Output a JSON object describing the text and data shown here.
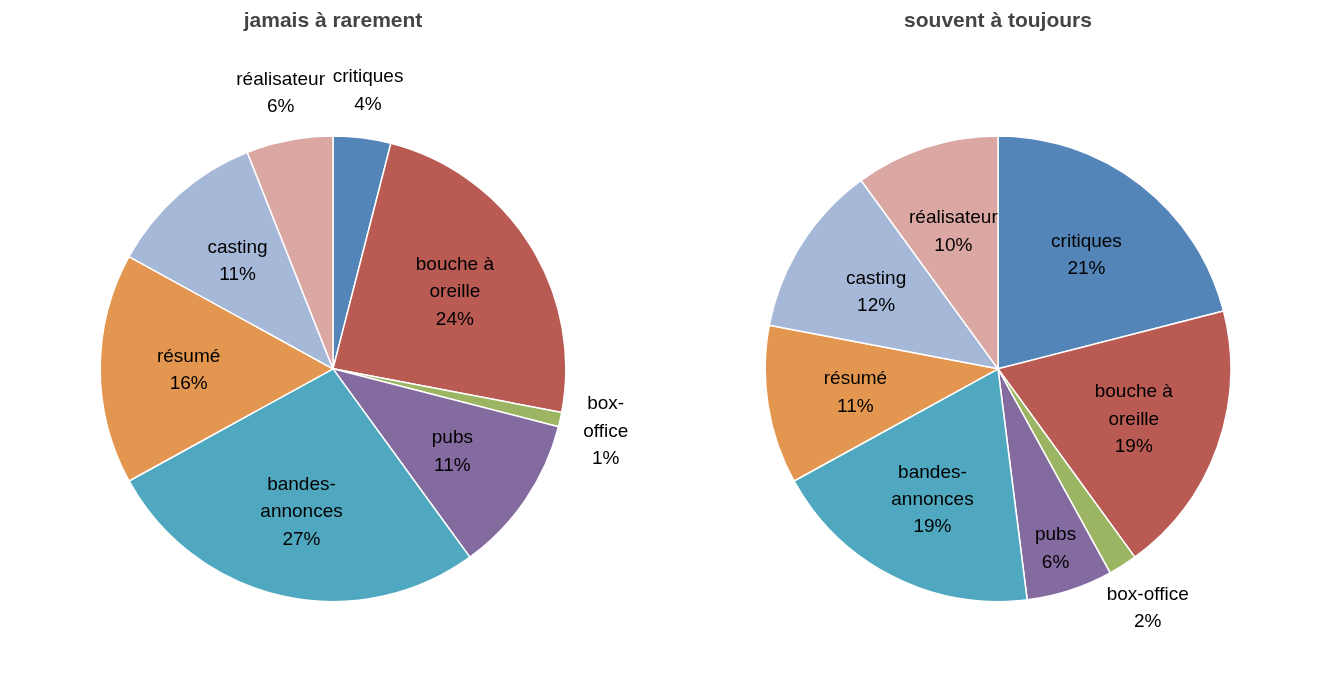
{
  "chart_data": [
    {
      "type": "pie",
      "title": "jamais à rarement",
      "categories": [
        "critiques",
        "bouche à\noreille",
        "box-\noffice",
        "pubs",
        "bandes-\nannonces",
        "résumé",
        "casting",
        "réalisateur"
      ],
      "values": [
        4,
        24,
        1,
        11,
        27,
        16,
        11,
        6
      ],
      "value_labels": [
        "4%",
        "24%",
        "1%",
        "11%",
        "27%",
        "16%",
        "11%",
        "6%"
      ],
      "colors": [
        "#5385b8",
        "#b95a53",
        "#9bb563",
        "#836a9f",
        "#4fa8bf",
        "#e3964f",
        "#a6b8d8",
        "#daa7a3"
      ],
      "legend": false
    },
    {
      "type": "pie",
      "title": "souvent à toujours",
      "categories": [
        "critiques",
        "bouche à\noreille",
        "box-office",
        "pubs",
        "bandes-\nannonces",
        "résumé",
        "casting",
        "réalisateur"
      ],
      "values": [
        21,
        19,
        2,
        6,
        19,
        11,
        12,
        10
      ],
      "value_labels": [
        "21%",
        "19%",
        "2%",
        "6%",
        "19%",
        "11%",
        "12%",
        "10%"
      ],
      "colors": [
        "#5385b8",
        "#b95a53",
        "#9bb563",
        "#836a9f",
        "#4fa8bf",
        "#e3964f",
        "#a6b8d8",
        "#daa7a3"
      ],
      "legend": false
    }
  ]
}
